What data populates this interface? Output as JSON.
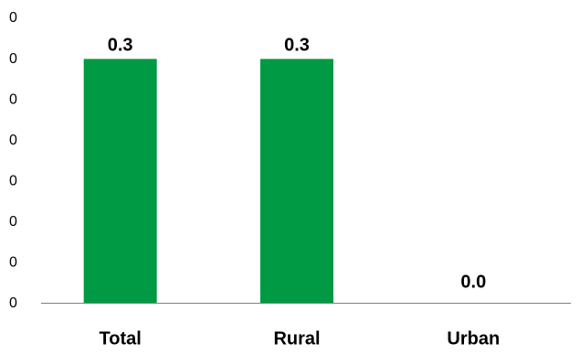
{
  "chart_data": {
    "type": "bar",
    "title": "",
    "xlabel": "",
    "ylabel": "",
    "categories": [
      "Total",
      "Rural",
      "Urban"
    ],
    "values": [
      0.3,
      0.3,
      0.0
    ],
    "data_labels": [
      "0.3",
      "0.3",
      "0.0"
    ],
    "y_tick_labels": [
      "0",
      "0",
      "0",
      "0",
      "0",
      "0",
      "0",
      "0"
    ],
    "ylim": [
      0,
      0.35
    ],
    "grid": false,
    "legend": "none",
    "colors": {
      "bar": "#009944",
      "axis": "#7f7f7f"
    }
  }
}
